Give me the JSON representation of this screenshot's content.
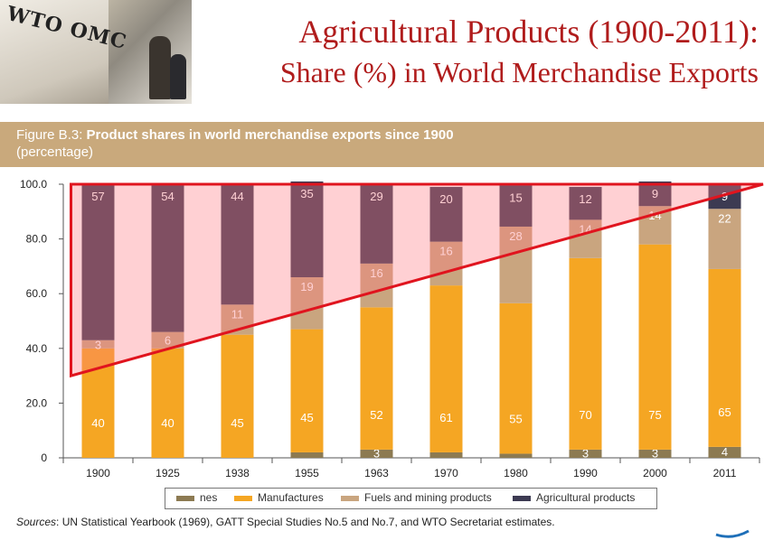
{
  "header": {
    "logo_text": "WTO OMC",
    "title_line1": "Agricultural Products (1900-2011):",
    "title_line2": "Share (%) in World Merchandise Exports"
  },
  "figure": {
    "label": "Figure B.3:",
    "title": "Product shares in world merchandise exports since 1900",
    "subtitle": "(percentage)"
  },
  "colors": {
    "nes": "#8c7a52",
    "manufactures": "#f5a623",
    "fuels": "#c9a57f",
    "agricultural": "#3c3a52",
    "highlight_fill": "rgba(255,120,130,0.35)",
    "highlight_stroke": "#e0141e"
  },
  "chart_data": {
    "type": "bar",
    "stacked": true,
    "categories": [
      "1900",
      "1925",
      "1938",
      "1955",
      "1963",
      "1970",
      "1980",
      "1990",
      "2000",
      "2011"
    ],
    "series": [
      {
        "name": "nes",
        "values": [
          0,
          0,
          0,
          2,
          3,
          2,
          1.5,
          3,
          3,
          4
        ],
        "labels": [
          "",
          "",
          "",
          "",
          "3",
          "",
          "",
          "3",
          "3",
          "4"
        ]
      },
      {
        "name": "Manufactures",
        "values": [
          40,
          40,
          45,
          45,
          52,
          61,
          55,
          70,
          75,
          65
        ],
        "labels": [
          "40",
          "40",
          "45",
          "45",
          "52",
          "61",
          "55",
          "70",
          "75",
          "65"
        ]
      },
      {
        "name": "Fuels and mining products",
        "values": [
          3,
          6,
          11,
          19,
          16,
          16,
          28,
          14,
          14,
          22
        ],
        "labels": [
          "3",
          "6",
          "11",
          "19",
          "16",
          "16",
          "28",
          "14",
          "14",
          "22"
        ]
      },
      {
        "name": "Agricultural products",
        "values": [
          57,
          54,
          44,
          35,
          29,
          20,
          15,
          12,
          9,
          9
        ],
        "labels": [
          "57",
          "54",
          "44",
          "35",
          "29",
          "20",
          "15",
          "12",
          "9",
          "9"
        ]
      }
    ],
    "yticks": [
      "0",
      "20.0",
      "40.0",
      "60.0",
      "80.0",
      "100.0"
    ],
    "ylim": [
      0,
      100
    ],
    "legend_position": "bottom",
    "annotation": {
      "shape": "triangle",
      "points": [
        [
          1900,
          100
        ],
        [
          1900,
          30
        ],
        [
          2011,
          100
        ]
      ]
    }
  },
  "sources": {
    "label": "Sources",
    "text": ": UN Statistical Yearbook (1969), GATT Special Studies No.5 and No.7, and WTO Secretariat estimates."
  }
}
